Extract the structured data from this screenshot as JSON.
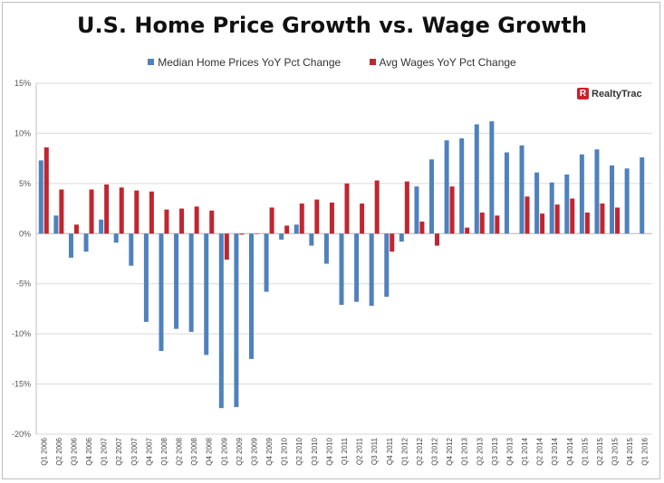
{
  "chart_data": {
    "type": "bar",
    "title": "U.S. Home Price Growth vs. Wage Growth",
    "xlabel": "",
    "ylabel": "",
    "ylim": [
      -20,
      15
    ],
    "yticks": [
      15,
      10,
      5,
      0,
      -5,
      -10,
      -15,
      -20
    ],
    "ytick_labels": [
      "15%",
      "10%",
      "5%",
      "0%",
      "-5%",
      "-10%",
      "-15%",
      "-20%"
    ],
    "gridlines": true,
    "legend_position": "top-center",
    "categories": [
      "Q1 2006",
      "Q2 2006",
      "Q3 2006",
      "Q4 2006",
      "Q1 2007",
      "Q2 2007",
      "Q3 2007",
      "Q4 2007",
      "Q1 2008",
      "Q2 2008",
      "Q3 2008",
      "Q4 2008",
      "Q1 2009",
      "Q2 2009",
      "Q3 2009",
      "Q4 2009",
      "Q1 2010",
      "Q2 2010",
      "Q3 2010",
      "Q4 2010",
      "Q1 2011",
      "Q2 2011",
      "Q3 2011",
      "Q4 2011",
      "Q1 2012",
      "Q2 2012",
      "Q3 2012",
      "Q4 2012",
      "Q1 2013",
      "Q2 2013",
      "Q3 2013",
      "Q4 2013",
      "Q1 2014",
      "Q2 2014",
      "Q3 2014",
      "Q4 2014",
      "Q1 2015",
      "Q2 2015",
      "Q3 2015",
      "Q4 2015",
      "Q1 2016"
    ],
    "series": [
      {
        "name": "Median Home Prices YoY Pct Change",
        "color": "#4f81bd",
        "values": [
          7.3,
          1.8,
          -2.4,
          -1.8,
          1.4,
          -0.9,
          -3.2,
          -8.8,
          -11.7,
          -9.5,
          -9.8,
          -12.1,
          -17.4,
          -17.3,
          -12.5,
          -5.8,
          -0.6,
          0.9,
          -1.2,
          -3.0,
          -7.1,
          -6.8,
          -7.2,
          -6.3,
          -0.8,
          4.7,
          7.4,
          9.3,
          9.5,
          10.9,
          11.2,
          8.1,
          8.8,
          6.1,
          5.1,
          5.9,
          7.9,
          8.4,
          6.8,
          6.5,
          7.6
        ]
      },
      {
        "name": "Avg Wages YoY Pct Change",
        "color": "#c0262f",
        "values": [
          8.6,
          4.4,
          0.9,
          4.4,
          4.9,
          4.6,
          4.3,
          4.2,
          2.4,
          2.5,
          2.7,
          2.3,
          -2.6,
          -0.1,
          0.0,
          2.6,
          0.8,
          3.0,
          3.4,
          3.1,
          5.0,
          3.0,
          5.3,
          -1.8,
          5.2,
          1.2,
          -1.2,
          4.7,
          0.6,
          2.1,
          1.8,
          null,
          3.7,
          2.0,
          2.9,
          3.5,
          2.1,
          3.0,
          2.6,
          null,
          null
        ]
      }
    ]
  },
  "logo": {
    "mark": "R",
    "text": "RealtyTrac"
  }
}
